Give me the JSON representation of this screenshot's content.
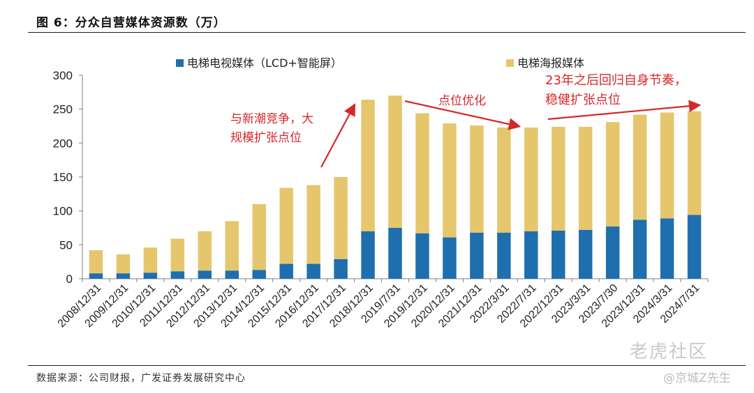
{
  "figure": {
    "title": "图 6：分众自营媒体资源数（万）",
    "source": "数据来源：公司财报，广发证券发展研究中心"
  },
  "watermark": {
    "logo": "老虎社区",
    "author": "@京城Z先生"
  },
  "colors": {
    "series_lcd": "#1f6fae",
    "series_poster": "#e6c66d",
    "annotation": "#d6272a",
    "axis": "#7f7f7f"
  },
  "chart_data": {
    "type": "bar",
    "stacked": true,
    "categories": [
      "2008/12/31",
      "2009/12/31",
      "2010/12/31",
      "2011/12/31",
      "2012/12/31",
      "2013/12/31",
      "2014/12/31",
      "2015/12/31",
      "2016/12/31",
      "2017/12/31",
      "2018/12/31",
      "2019/7/31",
      "2019/12/31",
      "2020/12/31",
      "2021/12/31",
      "2022/3/31",
      "2022/7/31",
      "2022/12/31",
      "2023/3/31",
      "2023/7/30",
      "2023/12/31",
      "2024/3/31",
      "2024/7/31"
    ],
    "series": [
      {
        "name": "电梯电视媒体（LCD+智能屏）",
        "values": [
          8,
          8,
          9,
          11,
          12,
          12,
          13,
          22,
          22,
          29,
          70,
          75,
          67,
          61,
          68,
          68,
          70,
          71,
          72,
          77,
          87,
          89,
          94
        ]
      },
      {
        "name": "电梯海报媒体",
        "values": [
          34,
          28,
          37,
          48,
          58,
          73,
          97,
          112,
          116,
          121,
          194,
          195,
          177,
          168,
          158,
          155,
          153,
          153,
          152,
          154,
          155,
          156,
          153
        ]
      }
    ],
    "ylim": [
      0,
      300
    ],
    "yticks": [
      0,
      50,
      100,
      150,
      200,
      250,
      300
    ],
    "grid": false,
    "legend_position": "top",
    "annotations": [
      {
        "id": "a1",
        "lines": [
          "与新潮竞争，大",
          "规模扩张点位"
        ]
      },
      {
        "id": "a2",
        "lines": [
          "点位优化"
        ]
      },
      {
        "id": "a3",
        "lines": [
          "23年之后回归自身节奏，",
          "稳健扩张点位"
        ]
      }
    ]
  }
}
